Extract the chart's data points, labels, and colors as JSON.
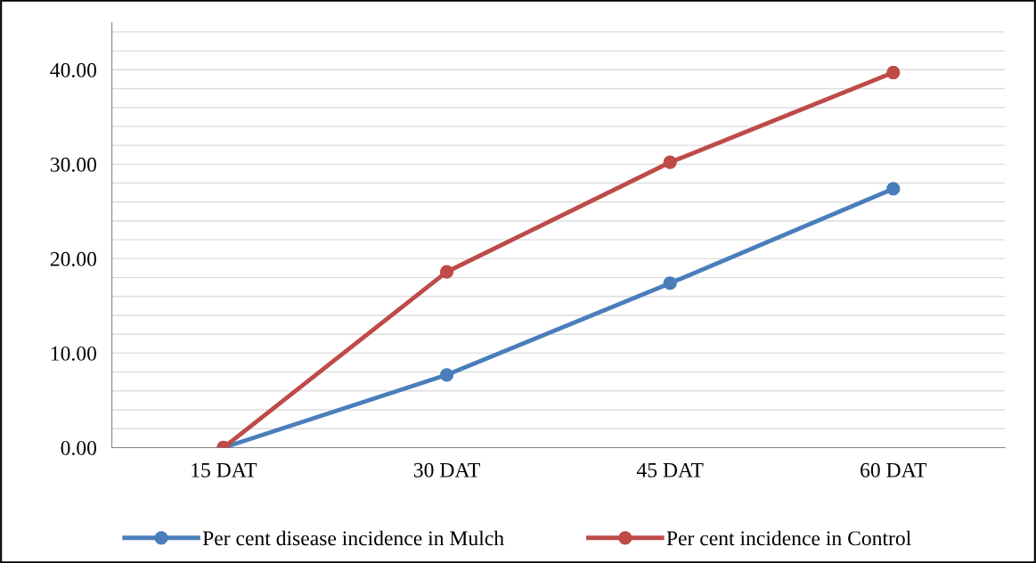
{
  "chart_data": {
    "type": "line",
    "categories": [
      "15 DAT",
      "30 DAT",
      "45 DAT",
      "60 DAT"
    ],
    "series": [
      {
        "name": "Per cent disease incidence in Mulch",
        "color": "#4a7ebb",
        "values": [
          0,
          7.7,
          17.4,
          27.4
        ]
      },
      {
        "name": "Per cent incidence in Control",
        "color": "#be4b48",
        "values": [
          0,
          18.6,
          30.2,
          39.7
        ]
      }
    ],
    "ylim": [
      0,
      45
    ],
    "yticks": [
      {
        "value": 0,
        "label": "0.00"
      },
      {
        "value": 2,
        "label": null
      },
      {
        "value": 4,
        "label": null
      },
      {
        "value": 6,
        "label": null
      },
      {
        "value": 8,
        "label": null
      },
      {
        "value": 10,
        "label": "10.00"
      },
      {
        "value": 12,
        "label": null
      },
      {
        "value": 14,
        "label": null
      },
      {
        "value": 16,
        "label": null
      },
      {
        "value": 18,
        "label": null
      },
      {
        "value": 20,
        "label": "20.00"
      },
      {
        "value": 22,
        "label": null
      },
      {
        "value": 24,
        "label": null
      },
      {
        "value": 26,
        "label": null
      },
      {
        "value": 28,
        "label": null
      },
      {
        "value": 30,
        "label": "30.00"
      },
      {
        "value": 32,
        "label": null
      },
      {
        "value": 34,
        "label": null
      },
      {
        "value": 36,
        "label": null
      },
      {
        "value": 38,
        "label": null
      },
      {
        "value": 40,
        "label": "40.00"
      },
      {
        "value": 42,
        "label": null
      },
      {
        "value": 44,
        "label": null
      }
    ],
    "grid": "y",
    "legend": "bottom",
    "marker": "circle",
    "line_style": "solid"
  }
}
